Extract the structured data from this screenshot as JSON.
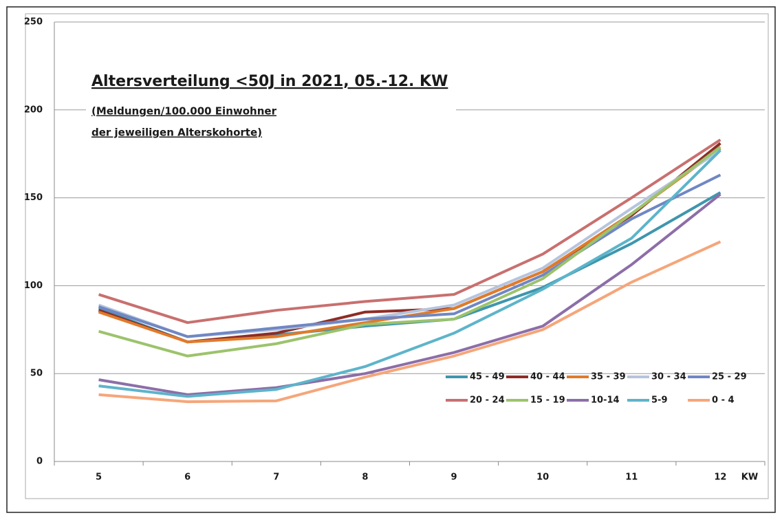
{
  "chart_data": {
    "type": "line",
    "title": "Altersverteilung <50J in 2021, 05.-12. KW",
    "subtitle": [
      "(Meldungen/100.000 Einwohner",
      "der jeweiligen Alterskohorte)"
    ],
    "x_label": "KW",
    "categories": [
      "5",
      "6",
      "7",
      "8",
      "9",
      "10",
      "11",
      "12"
    ],
    "ylim": [
      0,
      250
    ],
    "yticks": [
      0,
      50,
      100,
      150,
      200,
      250
    ],
    "grid": true,
    "legend": "bottom-right",
    "series": [
      {
        "name": "45 - 49",
        "color": "#3e96ad",
        "values": [
          87,
          68,
          72,
          77,
          81,
          99,
          124,
          153
        ]
      },
      {
        "name": "40 - 44",
        "color": "#8e2c26",
        "values": [
          86,
          68,
          73,
          85,
          87,
          108,
          140,
          181
        ]
      },
      {
        "name": "35 - 39",
        "color": "#e07b2a",
        "values": [
          85,
          68,
          71,
          79,
          87,
          108,
          141,
          178
        ]
      },
      {
        "name": "30 - 34",
        "color": "#b6c4dd",
        "values": [
          89,
          71,
          75,
          81,
          89,
          110,
          144,
          177
        ]
      },
      {
        "name": "25 - 29",
        "color": "#6f87c3",
        "values": [
          88,
          71,
          76,
          81,
          84,
          106,
          138,
          163
        ]
      },
      {
        "name": "20 - 24",
        "color": "#c8706f",
        "values": [
          95,
          79,
          86,
          91,
          95,
          118,
          150,
          183
        ]
      },
      {
        "name": "15 - 19",
        "color": "#9cc36c",
        "values": [
          74,
          60,
          67,
          78,
          81,
          104,
          141,
          179
        ]
      },
      {
        "name": "10-14",
        "color": "#8c6ea8",
        "values": [
          46.5,
          38,
          42,
          50,
          62,
          77,
          112,
          152
        ]
      },
      {
        "name": "5-9",
        "color": "#5db4ca",
        "values": [
          43,
          37,
          41,
          54,
          73,
          98,
          127,
          177
        ]
      },
      {
        "name": "0 - 4",
        "color": "#f5a67a",
        "values": [
          38,
          34,
          34.5,
          48,
          60,
          75,
          102,
          125
        ]
      }
    ]
  }
}
